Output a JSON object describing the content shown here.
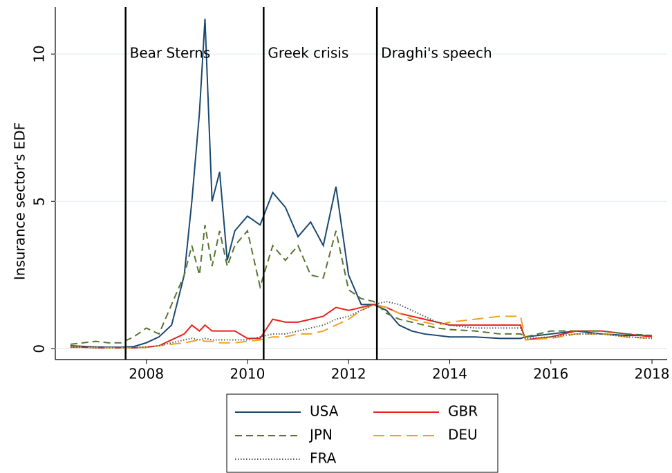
{
  "chart_data": {
    "type": "line",
    "y_label": "Insurance sector's EDF",
    "x": [
      2006.5,
      2006.75,
      2007,
      2007.25,
      2007.5,
      2007.75,
      2008,
      2008.25,
      2008.5,
      2008.75,
      2008.9,
      2009.05,
      2009.16,
      2009.3,
      2009.45,
      2009.6,
      2009.75,
      2010,
      2010.25,
      2010.5,
      2010.75,
      2011,
      2011.25,
      2011.5,
      2011.75,
      2012,
      2012.25,
      2012.5,
      2012.75,
      2013,
      2013.25,
      2013.5,
      2013.75,
      2014,
      2014.5,
      2015,
      2015.4,
      2015.5,
      2016,
      2016.5,
      2017,
      2017.5,
      2018
    ],
    "series": [
      {
        "name": "USA",
        "color": "#1a476f",
        "style": "solid",
        "values": [
          0.1,
          0.08,
          0.06,
          0.05,
          0.05,
          0.07,
          0.2,
          0.4,
          0.8,
          2.5,
          5,
          8,
          11.2,
          5,
          6,
          3,
          4,
          4.5,
          4.2,
          5.3,
          4.8,
          3.8,
          4.3,
          3.5,
          5.5,
          2.5,
          1.5,
          1.5,
          1.3,
          0.8,
          0.6,
          0.5,
          0.45,
          0.4,
          0.4,
          0.35,
          0.35,
          0.4,
          0.5,
          0.6,
          0.5,
          0.45,
          0.45
        ]
      },
      {
        "name": "GBR",
        "color": "#e8201c",
        "style": "solid",
        "values": [
          0.05,
          0.05,
          0.03,
          0.03,
          0.03,
          0.03,
          0.05,
          0.1,
          0.3,
          0.5,
          0.8,
          0.6,
          0.8,
          0.6,
          0.6,
          0.6,
          0.6,
          0.35,
          0.35,
          1.0,
          0.9,
          0.9,
          1.0,
          1.1,
          1.4,
          1.3,
          1.4,
          1.5,
          1.4,
          1.2,
          1.1,
          1.0,
          0.9,
          0.8,
          0.8,
          0.8,
          0.8,
          0.3,
          0.4,
          0.6,
          0.6,
          0.5,
          0.4
        ]
      },
      {
        "name": "JPN",
        "color": "#55752f",
        "style": "dash",
        "values": [
          0.15,
          0.2,
          0.25,
          0.2,
          0.2,
          0.4,
          0.7,
          0.5,
          1.5,
          2.5,
          3.5,
          2.5,
          4.2,
          2.8,
          4.0,
          2.8,
          3.5,
          4.0,
          2.1,
          3.5,
          3.0,
          3.5,
          2.5,
          2.4,
          4.0,
          2.0,
          1.7,
          1.6,
          1.2,
          1.0,
          0.9,
          0.8,
          0.7,
          0.65,
          0.6,
          0.5,
          0.5,
          0.4,
          0.6,
          0.6,
          0.6,
          0.5,
          0.45
        ]
      },
      {
        "name": "DEU",
        "color": "#f0a020",
        "style": "longdash",
        "values": [
          0.06,
          0.05,
          0.04,
          0.03,
          0.03,
          0.03,
          0.05,
          0.1,
          0.15,
          0.2,
          0.25,
          0.3,
          0.25,
          0.25,
          0.2,
          0.2,
          0.2,
          0.25,
          0.3,
          0.4,
          0.4,
          0.5,
          0.5,
          0.6,
          0.8,
          1.0,
          1.3,
          1.5,
          1.4,
          1.2,
          1.0,
          0.9,
          0.8,
          0.9,
          1.0,
          1.1,
          1.1,
          0.3,
          0.35,
          0.5,
          0.5,
          0.4,
          0.35
        ]
      },
      {
        "name": "FRA",
        "color": "#555555",
        "style": "dot",
        "values": [
          0.05,
          0.05,
          0.04,
          0.04,
          0.04,
          0.04,
          0.06,
          0.1,
          0.2,
          0.3,
          0.35,
          0.3,
          0.35,
          0.3,
          0.3,
          0.3,
          0.3,
          0.3,
          0.4,
          0.5,
          0.5,
          0.6,
          0.7,
          0.8,
          1.0,
          1.1,
          1.3,
          1.5,
          1.6,
          1.5,
          1.3,
          1.1,
          0.9,
          0.8,
          0.7,
          0.7,
          0.7,
          0.35,
          0.4,
          0.5,
          0.5,
          0.4,
          0.35
        ]
      }
    ],
    "annotations": [
      {
        "x": 2007.59,
        "label": "Bear Sterns"
      },
      {
        "x": 2010.32,
        "label": "Greek crisis"
      },
      {
        "x": 2012.56,
        "label": "Draghi's speech"
      }
    ],
    "xlim": [
      2006.2,
      2018.3
    ],
    "xticks": [
      2008,
      2010,
      2012,
      2014,
      2016,
      2018
    ],
    "ylim": [
      -0.37,
      11.6
    ],
    "yticks": [
      0,
      5,
      10
    ],
    "grid": true
  }
}
